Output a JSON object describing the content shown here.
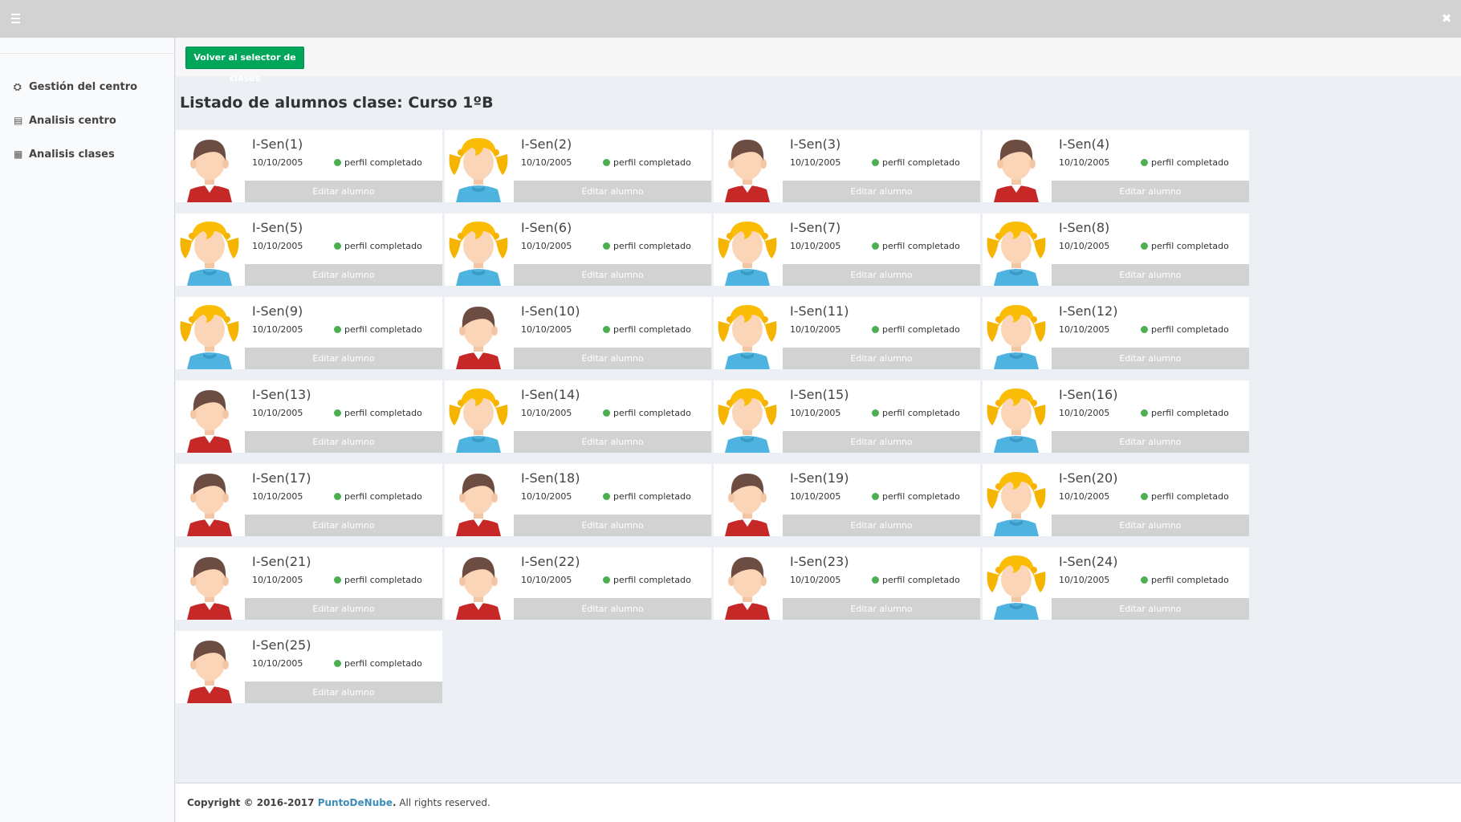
{
  "topbar": {
    "menu_icon": "hamburger-icon",
    "close_icon": "close-icon",
    "close_glyph": "✖"
  },
  "sidebar": {
    "items": [
      {
        "label": "Gestión del centro",
        "icon": "cubes-icon",
        "glyph": "⛭"
      },
      {
        "label": "Analisis centro",
        "icon": "book-icon",
        "glyph": "▤"
      },
      {
        "label": "Analisis clases",
        "icon": "briefcase-icon",
        "glyph": "▦"
      }
    ]
  },
  "header": {
    "back_button": "Volver al selector de clases"
  },
  "page": {
    "title": "Listado de alumnos clase: Curso 1ºB"
  },
  "students": [
    {
      "name": "I-Sen(1)",
      "date": "10/10/2005",
      "status": "perfil completado",
      "gender": "boy",
      "edit": "Editar alumno"
    },
    {
      "name": "I-Sen(2)",
      "date": "10/10/2005",
      "status": "perfil completado",
      "gender": "girl",
      "edit": "Editar alumno"
    },
    {
      "name": "I-Sen(3)",
      "date": "10/10/2005",
      "status": "perfil completado",
      "gender": "boy",
      "edit": "Editar alumno"
    },
    {
      "name": "I-Sen(4)",
      "date": "10/10/2005",
      "status": "perfil completado",
      "gender": "boy",
      "edit": "Editar alumno"
    },
    {
      "name": "I-Sen(5)",
      "date": "10/10/2005",
      "status": "perfil completado",
      "gender": "girl",
      "edit": "Editar alumno"
    },
    {
      "name": "I-Sen(6)",
      "date": "10/10/2005",
      "status": "perfil completado",
      "gender": "girl",
      "edit": "Editar alumno"
    },
    {
      "name": "I-Sen(7)",
      "date": "10/10/2005",
      "status": "perfil completado",
      "gender": "girl",
      "edit": "Editar alumno"
    },
    {
      "name": "I-Sen(8)",
      "date": "10/10/2005",
      "status": "perfil completado",
      "gender": "girl",
      "edit": "Editar alumno"
    },
    {
      "name": "I-Sen(9)",
      "date": "10/10/2005",
      "status": "perfil completado",
      "gender": "girl",
      "edit": "Editar alumno"
    },
    {
      "name": "I-Sen(10)",
      "date": "10/10/2005",
      "status": "perfil completado",
      "gender": "boy",
      "edit": "Editar alumno"
    },
    {
      "name": "I-Sen(11)",
      "date": "10/10/2005",
      "status": "perfil completado",
      "gender": "girl",
      "edit": "Editar alumno"
    },
    {
      "name": "I-Sen(12)",
      "date": "10/10/2005",
      "status": "perfil completado",
      "gender": "girl",
      "edit": "Editar alumno"
    },
    {
      "name": "I-Sen(13)",
      "date": "10/10/2005",
      "status": "perfil completado",
      "gender": "boy",
      "edit": "Editar alumno"
    },
    {
      "name": "I-Sen(14)",
      "date": "10/10/2005",
      "status": "perfil completado",
      "gender": "girl",
      "edit": "Editar alumno"
    },
    {
      "name": "I-Sen(15)",
      "date": "10/10/2005",
      "status": "perfil completado",
      "gender": "girl",
      "edit": "Editar alumno"
    },
    {
      "name": "I-Sen(16)",
      "date": "10/10/2005",
      "status": "perfil completado",
      "gender": "girl",
      "edit": "Editar alumno"
    },
    {
      "name": "I-Sen(17)",
      "date": "10/10/2005",
      "status": "perfil completado",
      "gender": "boy",
      "edit": "Editar alumno"
    },
    {
      "name": "I-Sen(18)",
      "date": "10/10/2005",
      "status": "perfil completado",
      "gender": "boy",
      "edit": "Editar alumno"
    },
    {
      "name": "I-Sen(19)",
      "date": "10/10/2005",
      "status": "perfil completado",
      "gender": "boy",
      "edit": "Editar alumno"
    },
    {
      "name": "I-Sen(20)",
      "date": "10/10/2005",
      "status": "perfil completado",
      "gender": "girl",
      "edit": "Editar alumno"
    },
    {
      "name": "I-Sen(21)",
      "date": "10/10/2005",
      "status": "perfil completado",
      "gender": "boy",
      "edit": "Editar alumno"
    },
    {
      "name": "I-Sen(22)",
      "date": "10/10/2005",
      "status": "perfil completado",
      "gender": "boy",
      "edit": "Editar alumno"
    },
    {
      "name": "I-Sen(23)",
      "date": "10/10/2005",
      "status": "perfil completado",
      "gender": "boy",
      "edit": "Editar alumno"
    },
    {
      "name": "I-Sen(24)",
      "date": "10/10/2005",
      "status": "perfil completado",
      "gender": "girl",
      "edit": "Editar alumno"
    },
    {
      "name": "I-Sen(25)",
      "date": "10/10/2005",
      "status": "perfil completado",
      "gender": "boy",
      "edit": "Editar alumno"
    }
  ],
  "footer": {
    "prefix": "Copyright © 2016-2017 ",
    "link": "PuntoDeNube",
    "suffix": ". All rights reserved."
  },
  "colors": {
    "accent_green": "#00a65a",
    "status_dot": "#4caf50",
    "link": "#3c8dbc",
    "topbar": "#d2d2d2"
  }
}
